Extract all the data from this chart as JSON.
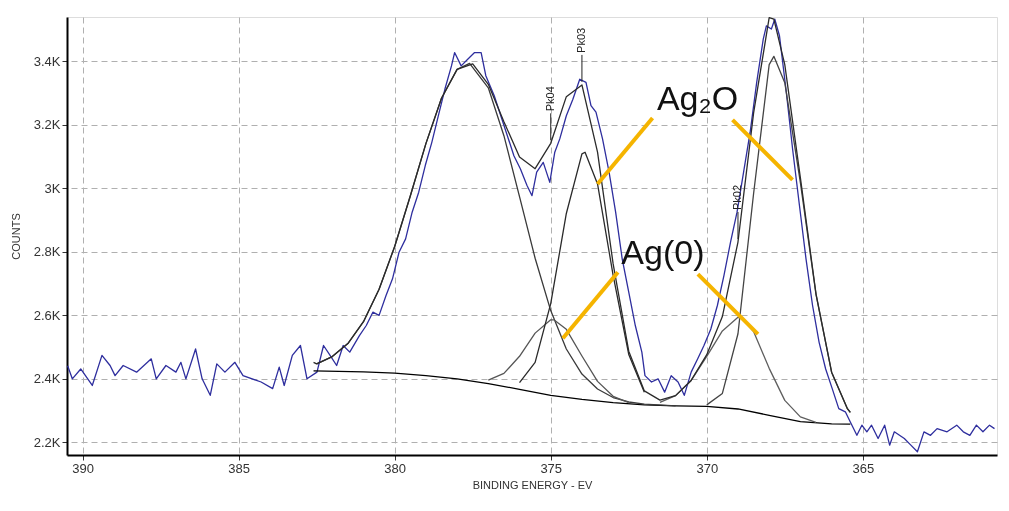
{
  "chart_data": {
    "type": "line",
    "xlabel": "BINDING ENERGY - EV",
    "ylabel": "COUNTS",
    "xlim": [
      390.5,
      360.7
    ],
    "ylim": [
      2160,
      3540
    ],
    "xticks": [
      390,
      385,
      380,
      375,
      370,
      365
    ],
    "yticks": [
      {
        "value": 2200,
        "label": "2.2K"
      },
      {
        "value": 2400,
        "label": "2.4K"
      },
      {
        "value": 2600,
        "label": "2.6K"
      },
      {
        "value": 2800,
        "label": "2.8K"
      },
      {
        "value": 3000,
        "label": "3K"
      },
      {
        "value": 3200,
        "label": "3.2K"
      },
      {
        "value": 3400,
        "label": "3.4K"
      }
    ],
    "grid": true,
    "marker": "none",
    "line_style": "solid",
    "series": [
      {
        "color": "#2e2e9e",
        "x": [
          390.48,
          390.33,
          390.06,
          389.69,
          389.38,
          389.12,
          388.96,
          388.7,
          388.27,
          387.8,
          387.64,
          387.33,
          387.01,
          386.85,
          386.69,
          386.38,
          386.17,
          385.91,
          385.7,
          385.44,
          385.12,
          384.86,
          384.28,
          383.91,
          383.7,
          383.54,
          383.28,
          383.02,
          382.81,
          382.49,
          382.28,
          382.07,
          381.86,
          381.65,
          381.44,
          381.13,
          380.91,
          380.7,
          380.5,
          380.28,
          380.07,
          379.86,
          379.65,
          379.44,
          379.23,
          379.02,
          378.81,
          378.6,
          378.39,
          378.18,
          378.08,
          377.87,
          377.66,
          377.44,
          377.23,
          377.08,
          376.81,
          376.6,
          376.39,
          376.18,
          375.97,
          375.76,
          375.6,
          375.45,
          375.24,
          375.03,
          374.87,
          374.71,
          374.5,
          374.29,
          374.07,
          373.87,
          373.71,
          373.55,
          373.34,
          373.13,
          372.92,
          372.71,
          372.5,
          372.29,
          372.08,
          371.98,
          371.77,
          371.56,
          371.35,
          371.14,
          370.92,
          370.72,
          370.5,
          370.29,
          370.09,
          369.87,
          369.66,
          369.45,
          369.24,
          369.03,
          368.82,
          368.61,
          368.4,
          368.19,
          368.09,
          367.93,
          367.82,
          367.67,
          367.45,
          367.25,
          367.03,
          366.82,
          366.61,
          366.4,
          366.19,
          365.98,
          365.77,
          365.56,
          365.4,
          365.19,
          365.03,
          364.87,
          364.72,
          364.51,
          364.3,
          364.14,
          363.99,
          363.67,
          363.46,
          363.25,
          363.04,
          362.83,
          362.62,
          362.3,
          361.99,
          361.78,
          361.57,
          361.36,
          361.15,
          360.94,
          360.78
        ],
        "values": [
          2441,
          2400,
          2431,
          2379,
          2474,
          2442,
          2410,
          2442,
          2421,
          2463,
          2400,
          2442,
          2421,
          2452,
          2400,
          2494,
          2400,
          2348,
          2447,
          2421,
          2452,
          2410,
          2390,
          2369,
          2437,
          2379,
          2474,
          2505,
          2400,
          2421,
          2505,
          2474,
          2442,
          2505,
          2484,
          2536,
          2568,
          2610,
          2600,
          2662,
          2715,
          2799,
          2841,
          2925,
          2988,
          3072,
          3145,
          3229,
          3313,
          3386,
          3428,
          3386,
          3407,
          3428,
          3428,
          3355,
          3292,
          3229,
          3166,
          3103,
          3061,
          3009,
          2977,
          3051,
          3082,
          3019,
          3114,
          3156,
          3229,
          3281,
          3344,
          3334,
          3261,
          3240,
          3156,
          3051,
          2925,
          2778,
          2673,
          2568,
          2484,
          2410,
          2390,
          2400,
          2358,
          2410,
          2390,
          2348,
          2421,
          2463,
          2505,
          2557,
          2631,
          2725,
          2830,
          2925,
          3051,
          3177,
          3334,
          3470,
          3512,
          3502,
          3533,
          3481,
          3302,
          3124,
          2946,
          2778,
          2631,
          2515,
          2431,
          2369,
          2306,
          2296,
          2264,
          2222,
          2254,
          2233,
          2254,
          2212,
          2254,
          2191,
          2233,
          2212,
          2191,
          2170,
          2233,
          2222,
          2243,
          2233,
          2254,
          2233,
          2222,
          2254,
          2233,
          2254,
          2243
        ]
      },
      {
        "color": "#000000",
        "x": [
          382.6,
          381,
          380,
          379,
          378,
          377,
          376,
          375,
          374,
          373,
          372,
          371,
          370,
          369,
          368,
          367,
          366,
          365.4
        ],
        "values": [
          2425,
          2422,
          2418,
          2410,
          2400,
          2385,
          2367,
          2348,
          2335,
          2325,
          2318,
          2315,
          2313,
          2305,
          2285,
          2265,
          2258,
          2257
        ]
      },
      {
        "color": "#3a3a3a",
        "x": [
          382.5,
          382,
          381.5,
          381,
          380.5,
          380,
          379.5,
          379,
          378.5,
          378,
          377.6,
          377,
          376.5,
          376,
          375.5,
          375,
          374.5,
          374,
          373.5,
          373,
          372.5,
          372,
          371
        ],
        "values": [
          2447,
          2470,
          2511,
          2580,
          2682,
          2817,
          2976,
          3141,
          3284,
          3375,
          3394,
          3317,
          3166,
          2974,
          2780,
          2615,
          2494,
          2415,
          2368,
          2341,
          2327,
          2320,
          2315
        ]
      },
      {
        "color": "#555555",
        "x": [
          377,
          376.5,
          376,
          375.5,
          375,
          374.9,
          374.5,
          374,
          373.5,
          373,
          372.5
        ],
        "values": [
          2396,
          2417,
          2471,
          2544,
          2586,
          2586,
          2556,
          2472,
          2392,
          2345,
          2325
        ]
      },
      {
        "color": "#2a2a2a",
        "x": [
          376,
          375.5,
          375,
          374.5,
          374,
          373.9,
          373.5,
          373,
          372.5,
          372
        ],
        "values": [
          2388,
          2452,
          2637,
          2921,
          3109,
          3114,
          3014,
          2726,
          2477,
          2358
        ]
      },
      {
        "color": "#5e5e5e",
        "x": [
          371.5,
          371,
          370.5,
          370,
          369.5,
          369,
          368.9,
          368.5,
          368,
          367.5,
          367,
          366.5
        ],
        "values": [
          2326,
          2347,
          2395,
          2471,
          2551,
          2594,
          2593,
          2549,
          2433,
          2332,
          2280,
          2263
        ]
      },
      {
        "color": "#444444",
        "x": [
          370,
          369.5,
          369,
          368.5,
          368,
          367.85,
          367.5,
          367,
          366.5,
          366,
          365.5,
          365.4
        ],
        "values": [
          2318,
          2354,
          2542,
          2983,
          3390,
          3416,
          3333,
          3018,
          2666,
          2421,
          2307,
          2294
        ]
      },
      {
        "color": "#2b2b2b",
        "x": [
          382.6,
          382.5,
          382,
          381.5,
          381,
          380.5,
          380,
          379.5,
          379,
          378.5,
          378,
          377.5,
          377,
          376.5,
          376,
          375.5,
          375,
          374.5,
          374,
          373.5,
          373,
          372.5,
          372,
          371.5,
          371,
          370.5,
          370,
          369.5,
          369,
          368.5,
          368,
          367.85,
          367.5,
          367,
          366.5,
          366,
          365.5,
          365.4
        ],
        "values": [
          2452,
          2447,
          2470,
          2511,
          2580,
          2682,
          2817,
          2976,
          3141,
          3284,
          3375,
          3392,
          3328,
          3210,
          3099,
          3062,
          3142,
          3289,
          3326,
          3114,
          2762,
          2487,
          2362,
          2333,
          2347,
          2395,
          2476,
          2596,
          2831,
          3237,
          3538,
          3533,
          3390,
          3033,
          2668,
          2421,
          2307,
          2294
        ]
      }
    ],
    "annotations": [
      {
        "text": "Pk04",
        "x": 375,
        "y": 3142
      },
      {
        "text": "Pk03",
        "x": 374,
        "y": 3326
      },
      {
        "text": "Pk02",
        "x": 369,
        "y": 2831
      },
      {
        "text": "Ag₂O",
        "x": 373.5,
        "y": 3014
      },
      {
        "text": "Ag(0)",
        "x": 374.61,
        "y": 2528
      }
    ]
  }
}
